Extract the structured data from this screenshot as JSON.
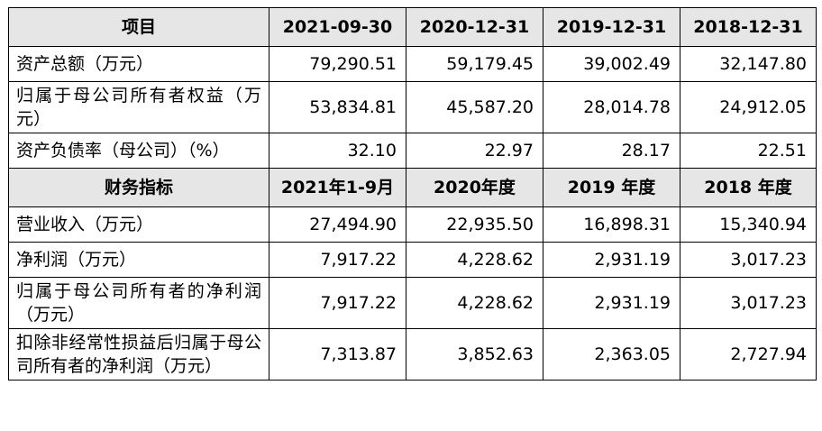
{
  "table": {
    "sections": [
      {
        "header": [
          "项目",
          "2021-09-30",
          "2020-12-31",
          "2019-12-31",
          "2018-12-31"
        ],
        "rows": [
          [
            "资产总额（万元）",
            "79,290.51",
            "59,179.45",
            "39,002.49",
            "32,147.80"
          ],
          [
            "归属于母公司所有者权益（万元）",
            "53,834.81",
            "45,587.20",
            "28,014.78",
            "24,912.05"
          ],
          [
            "资产负债率（母公司）（%）",
            "32.10",
            "22.97",
            "28.17",
            "22.51"
          ]
        ]
      },
      {
        "header": [
          "财务指标",
          "2021年1-9月",
          "2020年度",
          "2019 年度",
          "2018 年度"
        ],
        "rows": [
          [
            "营业收入（万元）",
            "27,494.90",
            "22,935.50",
            "16,898.31",
            "15,340.94"
          ],
          [
            "净利润（万元）",
            "7,917.22",
            "4,228.62",
            "2,931.19",
            "3,017.23"
          ],
          [
            "归属于母公司所有者的净利润（万元）",
            "7,917.22",
            "4,228.62",
            "2,931.19",
            "3,017.23"
          ],
          [
            "扣除非经常性损益后归属于母公司所有者的净利润（万元）",
            "7,313.87",
            "3,852.63",
            "2,363.05",
            "2,727.94"
          ]
        ]
      }
    ]
  }
}
